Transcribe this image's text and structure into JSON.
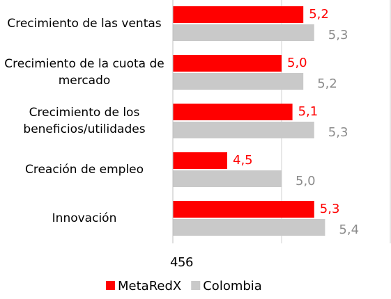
{
  "chart_data": {
    "type": "hbar",
    "categories": [
      "Crecimiento de las ventas",
      "Crecimiento de la cuota de mercado",
      "Crecimiento de los beneficios/utilidades",
      "Creación de empleo",
      "Innovación"
    ],
    "series": [
      {
        "name": "MetaRedX",
        "color": "#ff0000",
        "values": [
          5.2,
          5.0,
          5.1,
          4.5,
          5.3
        ],
        "value_labels": [
          "5,2",
          "5,0",
          "5,1",
          "4,5",
          "5,3"
        ]
      },
      {
        "name": "Colombia",
        "color": "#c9c9c9",
        "values": [
          5.3,
          5.2,
          5.3,
          5.0,
          5.4
        ],
        "value_labels": [
          "5,3",
          "5,2",
          "5,3",
          "5,0",
          "5,4"
        ]
      }
    ],
    "label_colors": [
      "#ff0000",
      "#8c8c8c"
    ],
    "xlim": [
      4,
      6
    ],
    "xticks": [
      4,
      5,
      6
    ],
    "grid": true,
    "legend": "bottom"
  }
}
